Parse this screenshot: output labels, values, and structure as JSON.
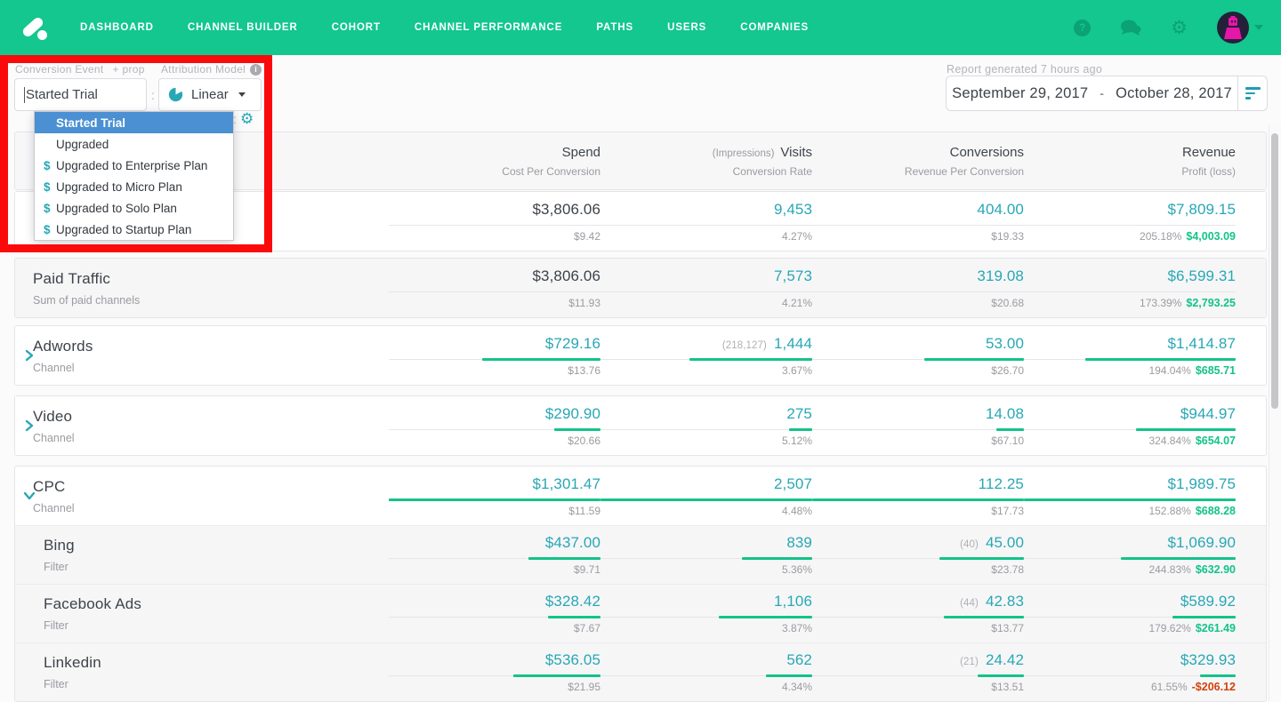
{
  "nav": {
    "items": [
      "DASHBOARD",
      "CHANNEL BUILDER",
      "COHORT",
      "CHANNEL PERFORMANCE",
      "PATHS",
      "USERS",
      "COMPANIES"
    ],
    "right_icons": [
      "help-icon",
      "chat-icon",
      "gear-icon",
      "avatar",
      "chevron-down-icon"
    ],
    "help_glyph": "?",
    "gear_glyph": "⚙"
  },
  "toolbar": {
    "conversion_event_label": "Conversion Event",
    "prop_label": "+ prop",
    "conversion_event_value": "Started Trial",
    "separator": ":",
    "attribution_model_label": "Attribution Model",
    "attribution_model_value": "Linear",
    "settings_gear_glyph": "⚙",
    "dropdown_items": [
      {
        "label": "Started Trial",
        "selected": true,
        "dollar": false
      },
      {
        "label": "Upgraded",
        "selected": false,
        "dollar": false
      },
      {
        "label": "Upgraded to Enterprise Plan",
        "selected": false,
        "dollar": true
      },
      {
        "label": "Upgraded to Micro Plan",
        "selected": false,
        "dollar": true
      },
      {
        "label": "Upgraded to Solo Plan",
        "selected": false,
        "dollar": true
      },
      {
        "label": "Upgraded to Startup Plan",
        "selected": false,
        "dollar": true
      }
    ],
    "dollar_glyph": "$",
    "report_generated": "Report generated 7 hours ago",
    "date_start": "September 29, 2017",
    "date_separator": "-",
    "date_end": "October 28, 2017"
  },
  "table": {
    "columns": [
      {
        "title": "Spend",
        "prefix": "",
        "subtitle": "Cost Per Conversion"
      },
      {
        "title": "Visits",
        "prefix": "(Impressions)",
        "subtitle": "Conversion Rate"
      },
      {
        "title": "Conversions",
        "prefix": "",
        "subtitle": "Revenue Per Conversion"
      },
      {
        "title": "Revenue",
        "prefix": "",
        "subtitle": "Profit (loss)"
      }
    ],
    "groups": [
      [
        0
      ],
      [
        1
      ],
      [
        2
      ],
      [
        3
      ],
      [
        4,
        5,
        6,
        7
      ]
    ],
    "group_gaps": [
      1,
      7,
      8,
      11,
      11
    ],
    "rows": [
      {
        "name": "",
        "subtitle": "",
        "chevron": null,
        "indent": false,
        "shade": false,
        "cells": [
          {
            "main": "$3,806.06",
            "sub": "$9.42",
            "dark": true,
            "bar": 0
          },
          {
            "main": "9,453",
            "sub": "4.27%",
            "bar": 0
          },
          {
            "main": "404.00",
            "sub": "$19.33",
            "bar": 0
          },
          {
            "main": "$7,809.15",
            "sub": "205.18%",
            "profit": "$4,003.09",
            "profit_negative": false,
            "bar": 0
          }
        ]
      },
      {
        "name": "Paid Traffic",
        "subtitle": "Sum of paid channels",
        "chevron": null,
        "indent": false,
        "shade": true,
        "cells": [
          {
            "main": "$3,806.06",
            "sub": "$11.93",
            "dark": true,
            "bar": 0
          },
          {
            "main": "7,573",
            "sub": "4.21%",
            "bar": 0
          },
          {
            "main": "319.08",
            "sub": "$20.68",
            "bar": 0
          },
          {
            "main": "$6,599.31",
            "sub": "173.39%",
            "profit": "$2,793.25",
            "profit_negative": false,
            "bar": 0
          }
        ]
      },
      {
        "name": "Adwords",
        "subtitle": "Channel",
        "chevron": "right",
        "indent": false,
        "shade": false,
        "cells": [
          {
            "main": "$729.16",
            "sub": "$13.76",
            "bar": 0.56
          },
          {
            "prefix": "(218,127)",
            "main": "1,444",
            "sub": "3.67%",
            "bar": 0.58
          },
          {
            "main": "53.00",
            "sub": "$26.70",
            "bar": 0.47
          },
          {
            "main": "$1,414.87",
            "sub": "194.04%",
            "profit": "$685.71",
            "profit_negative": false,
            "bar": 0.71
          }
        ]
      },
      {
        "name": "Video",
        "subtitle": "Channel",
        "chevron": "right",
        "indent": false,
        "shade": false,
        "cells": [
          {
            "main": "$290.90",
            "sub": "$20.66",
            "bar": 0.22
          },
          {
            "main": "275",
            "sub": "5.12%",
            "bar": 0.11
          },
          {
            "main": "14.08",
            "sub": "$67.10",
            "bar": 0.13
          },
          {
            "main": "$944.97",
            "sub": "324.84%",
            "profit": "$654.07",
            "profit_negative": false,
            "bar": 0.47
          }
        ]
      },
      {
        "name": "CPC",
        "subtitle": "Channel",
        "chevron": "down",
        "indent": false,
        "shade": false,
        "cells": [
          {
            "main": "$1,301.47",
            "sub": "$11.59",
            "bar": 1
          },
          {
            "main": "2,507",
            "sub": "4.48%",
            "bar": 1
          },
          {
            "main": "112.25",
            "sub": "$17.73",
            "bar": 1
          },
          {
            "main": "$1,989.75",
            "sub": "152.88%",
            "profit": "$688.28",
            "profit_negative": false,
            "bar": 1
          }
        ]
      },
      {
        "name": "Bing",
        "subtitle": "Filter",
        "chevron": null,
        "indent": true,
        "shade": true,
        "cells": [
          {
            "main": "$437.00",
            "sub": "$9.71",
            "bar": 0.34
          },
          {
            "main": "839",
            "sub": "5.36%",
            "bar": 0.33
          },
          {
            "prefix": "(40)",
            "main": "45.00",
            "sub": "$23.78",
            "bar": 0.4
          },
          {
            "main": "$1,069.90",
            "sub": "244.83%",
            "profit": "$632.90",
            "profit_negative": false,
            "bar": 0.54
          }
        ]
      },
      {
        "name": "Facebook Ads",
        "subtitle": "Filter",
        "chevron": null,
        "indent": true,
        "shade": true,
        "cells": [
          {
            "main": "$328.42",
            "sub": "$7.67",
            "bar": 0.25
          },
          {
            "main": "1,106",
            "sub": "3.87%",
            "bar": 0.44
          },
          {
            "prefix": "(44)",
            "main": "42.83",
            "sub": "$13.77",
            "bar": 0.38
          },
          {
            "main": "$589.92",
            "sub": "179.62%",
            "profit": "$261.49",
            "profit_negative": false,
            "bar": 0.3
          }
        ]
      },
      {
        "name": "Linkedin",
        "subtitle": "Filter",
        "chevron": null,
        "indent": true,
        "shade": true,
        "cells": [
          {
            "main": "$536.05",
            "sub": "$21.95",
            "bar": 0.41
          },
          {
            "main": "562",
            "sub": "4.34%",
            "bar": 0.22
          },
          {
            "prefix": "(21)",
            "main": "24.42",
            "sub": "$13.51",
            "bar": 0.22
          },
          {
            "main": "$329.93",
            "sub": "61.55%",
            "profit": "-$206.12",
            "profit_negative": true,
            "bar": 0.17
          }
        ]
      }
    ]
  },
  "colors": {
    "nav_green": "#13c78f",
    "icon_green": "#0ba275",
    "teal_value": "#28a7b5",
    "bar_profit_green": "#13c389",
    "negative_red": "#d2410c",
    "selected_blue": "#4a90d2",
    "annotation_red": "#fa0a0a"
  }
}
